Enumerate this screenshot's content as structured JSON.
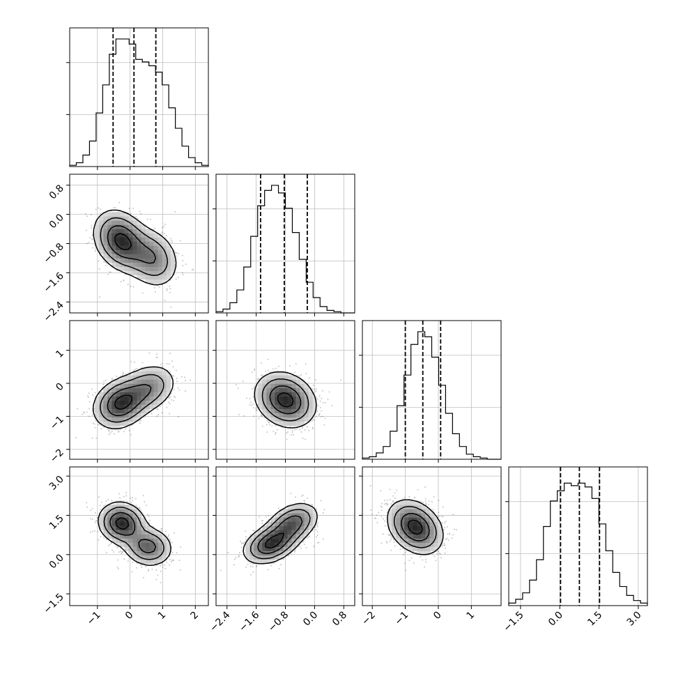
{
  "chart_data": {
    "type": "corner",
    "grid": true,
    "contour_levels": [
      0.118,
      0.393,
      0.675,
      0.865
    ],
    "dimensions": [
      {
        "range": [
          -1.85,
          2.4
        ],
        "quantiles": [
          -0.52,
          0.12,
          0.79
        ],
        "ticks": [
          -1,
          0,
          1,
          2
        ],
        "tick_labels": [
          "−1",
          "0",
          "1",
          "2"
        ],
        "hist": [
          0.01,
          0.03,
          0.09,
          0.2,
          0.42,
          0.64,
          0.88,
          1.0,
          1.0,
          0.96,
          0.84,
          0.82,
          0.79,
          0.74,
          0.64,
          0.46,
          0.3,
          0.16,
          0.07,
          0.03,
          0.01
        ]
      },
      {
        "range": [
          -2.7,
          1.1
        ],
        "quantiles": [
          -1.48,
          -0.83,
          -0.2
        ],
        "ticks": [
          0.8,
          0.0,
          -0.8,
          -1.6,
          -2.4
        ],
        "tick_labels": [
          "0.8",
          "0.0",
          "−0.8",
          "−1.6",
          "−2.4"
        ],
        "x_tick_labels": [
          "−2.4",
          "−1.6",
          "−0.8",
          "0.0",
          "0.8"
        ],
        "hist": [
          0.01,
          0.03,
          0.08,
          0.18,
          0.36,
          0.6,
          0.84,
          0.96,
          1.0,
          0.94,
          0.82,
          0.63,
          0.42,
          0.24,
          0.12,
          0.05,
          0.02,
          0.01,
          0.0,
          0.0
        ]
      },
      {
        "range": [
          -2.3,
          1.9
        ],
        "quantiles": [
          -1.0,
          -0.47,
          0.07
        ],
        "ticks": [
          1,
          0,
          -1,
          -2
        ],
        "tick_labels": [
          "1",
          "0",
          "−1",
          "−2"
        ],
        "x_tick_labels": [
          "−2",
          "−1",
          "0",
          "1"
        ],
        "hist": [
          0.01,
          0.02,
          0.05,
          0.1,
          0.22,
          0.42,
          0.66,
          0.9,
          1.0,
          0.96,
          0.8,
          0.58,
          0.36,
          0.2,
          0.1,
          0.04,
          0.02,
          0.01,
          0.0,
          0.0
        ]
      },
      {
        "range": [
          -1.95,
          3.35
        ],
        "quantiles": [
          0.03,
          0.75,
          1.52
        ],
        "ticks": [
          3.0,
          1.5,
          0.0,
          -1.5
        ],
        "tick_labels": [
          "3.0",
          "1.5",
          "0.0",
          "−1.5"
        ],
        "x_tick_labels": [
          "−1.5",
          "0.0",
          "1.5",
          "3.0"
        ],
        "hist": [
          0.02,
          0.05,
          0.1,
          0.2,
          0.36,
          0.62,
          0.82,
          0.9,
          0.96,
          0.94,
          0.96,
          0.93,
          0.84,
          0.64,
          0.43,
          0.26,
          0.15,
          0.08,
          0.04,
          0.02
        ]
      }
    ],
    "pairs": [
      {
        "x": 0,
        "y": 1,
        "modes": [
          {
            "mx": -0.28,
            "my": -0.72,
            "sx": 0.42,
            "sy": 0.42,
            "rho": -0.25,
            "w": 0.62
          },
          {
            "mx": 0.68,
            "my": -1.2,
            "sx": 0.42,
            "sy": 0.42,
            "rho": -0.2,
            "w": 0.38
          }
        ]
      },
      {
        "x": 0,
        "y": 2,
        "modes": [
          {
            "mx": -0.3,
            "my": -0.62,
            "sx": 0.42,
            "sy": 0.38,
            "rho": 0.2,
            "w": 0.62
          },
          {
            "mx": 0.55,
            "my": -0.15,
            "sx": 0.45,
            "sy": 0.38,
            "rho": 0.25,
            "w": 0.38
          }
        ]
      },
      {
        "x": 1,
        "y": 2,
        "modes": [
          {
            "mx": -0.8,
            "my": -0.5,
            "sx": 0.42,
            "sy": 0.42,
            "rho": -0.2,
            "w": 1.0
          }
        ]
      },
      {
        "x": 0,
        "y": 3,
        "modes": [
          {
            "mx": -0.25,
            "my": 1.2,
            "sx": 0.36,
            "sy": 0.4,
            "rho": -0.1,
            "w": 0.58
          },
          {
            "mx": 0.55,
            "my": 0.3,
            "sx": 0.38,
            "sy": 0.38,
            "rho": -0.1,
            "w": 0.42
          }
        ]
      },
      {
        "x": 1,
        "y": 3,
        "modes": [
          {
            "mx": -1.2,
            "my": 0.4,
            "sx": 0.38,
            "sy": 0.38,
            "rho": 0.35,
            "w": 0.55
          },
          {
            "mx": -0.6,
            "my": 1.2,
            "sx": 0.36,
            "sy": 0.4,
            "rho": 0.35,
            "w": 0.45
          }
        ]
      },
      {
        "x": 2,
        "y": 3,
        "modes": [
          {
            "mx": -0.7,
            "my": 1.05,
            "sx": 0.42,
            "sy": 0.52,
            "rho": -0.3,
            "w": 1.0
          }
        ]
      }
    ]
  }
}
